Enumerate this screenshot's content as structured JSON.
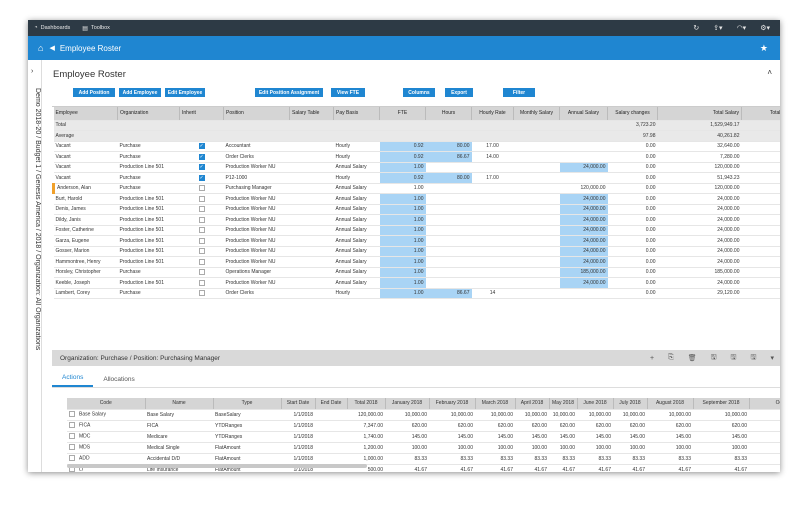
{
  "topbar": {
    "dashboards": "Dashboards",
    "toolbox": "Toolbox"
  },
  "titlebar": {
    "title": "Employee Roster"
  },
  "sidebar": {
    "breadcrumb": "Demo 2018-20 / Budget 1 / Genesis America / 2018 / Organization: All Organizations"
  },
  "page": {
    "heading": "Employee Roster"
  },
  "toolbar": {
    "add_position": "Add Position",
    "add_employee": "Add Employee",
    "edit_employee": "Edit Employee",
    "edit_position_assignment": "Edit Position Assignment",
    "view_fte": "View FTE",
    "columns": "Columns",
    "export": "Export",
    "filter": "Filter"
  },
  "grid": {
    "headers": [
      "Employee",
      "Organization",
      "Inherit",
      "Position",
      "Salary Table",
      "Pay Basis",
      "FTE",
      "Hours",
      "Hourly Rate",
      "Monthly Salary",
      "Annual Salary",
      "Salary changes",
      "Total Salary",
      "Total S"
    ],
    "total": {
      "label": "Total",
      "salary_changes": "3,723.20",
      "total_salary": "1,529,949.17"
    },
    "average": {
      "label": "Average",
      "salary_changes": "97.98",
      "total_salary": "40,261.82"
    },
    "rows": [
      {
        "employee": "Vacant",
        "org": "Purchase",
        "inherit": true,
        "position": "Accountant",
        "pay": "Hourly",
        "fte": "0.92",
        "hours": "80.00",
        "rate": "17.00",
        "monthly": "",
        "annual": "",
        "changes": "0.00",
        "total": "32,640.00"
      },
      {
        "employee": "Vacant",
        "org": "Purchase",
        "inherit": true,
        "position": "Order Clerks",
        "pay": "Hourly",
        "fte": "0.92",
        "hours": "86.67",
        "rate": "14.00",
        "monthly": "",
        "annual": "",
        "changes": "0.00",
        "total": "7,280.00"
      },
      {
        "employee": "Vacant",
        "org": "Production Line 501",
        "inherit": true,
        "position": "Production Worker NU",
        "pay": "Annual Salary",
        "fte": "1.00",
        "hours": "",
        "rate": "",
        "monthly": "",
        "annual": "24,000.00",
        "changes": "0.00",
        "total": "120,000.00"
      },
      {
        "employee": "Vacant",
        "org": "Purchase",
        "inherit": true,
        "position": "P12-1000",
        "pay": "Hourly",
        "fte": "0.92",
        "hours": "80.00",
        "rate": "17.00",
        "monthly": "",
        "annual": "",
        "changes": "0.00",
        "total": "51,943.23"
      },
      {
        "employee": "Anderson, Alan",
        "org": "Purchase",
        "inherit": false,
        "position": "Purchasing Manager",
        "pay": "Annual Salary",
        "fte": "1.00",
        "hours": "",
        "rate": "",
        "monthly": "",
        "annual": "120,000.00",
        "changes": "0.00",
        "total": "120,000.00",
        "selected": true
      },
      {
        "employee": "Burt, Harold",
        "org": "Production Line 501",
        "inherit": false,
        "position": "Production Worker NU",
        "pay": "Annual Salary",
        "fte": "1.00",
        "hours": "",
        "rate": "",
        "monthly": "",
        "annual": "24,000.00",
        "changes": "0.00",
        "total": "24,000.00"
      },
      {
        "employee": "Denis, James",
        "org": "Production Line 501",
        "inherit": false,
        "position": "Production Worker NU",
        "pay": "Annual Salary",
        "fte": "1.00",
        "hours": "",
        "rate": "",
        "monthly": "",
        "annual": "24,000.00",
        "changes": "0.00",
        "total": "24,000.00"
      },
      {
        "employee": "Dildy, Janis",
        "org": "Production Line 501",
        "inherit": false,
        "position": "Production Worker NU",
        "pay": "Annual Salary",
        "fte": "1.00",
        "hours": "",
        "rate": "",
        "monthly": "",
        "annual": "24,000.00",
        "changes": "0.00",
        "total": "24,000.00"
      },
      {
        "employee": "Foster, Catherine",
        "org": "Production Line 501",
        "inherit": false,
        "position": "Production Worker NU",
        "pay": "Annual Salary",
        "fte": "1.00",
        "hours": "",
        "rate": "",
        "monthly": "",
        "annual": "24,000.00",
        "changes": "0.00",
        "total": "24,000.00"
      },
      {
        "employee": "Garza, Eugene",
        "org": "Production Line 501",
        "inherit": false,
        "position": "Production Worker NU",
        "pay": "Annual Salary",
        "fte": "1.00",
        "hours": "",
        "rate": "",
        "monthly": "",
        "annual": "24,000.00",
        "changes": "0.00",
        "total": "24,000.00"
      },
      {
        "employee": "Gosser, Marion",
        "org": "Production Line 501",
        "inherit": false,
        "position": "Production Worker NU",
        "pay": "Annual Salary",
        "fte": "1.00",
        "hours": "",
        "rate": "",
        "monthly": "",
        "annual": "24,000.00",
        "changes": "0.00",
        "total": "24,000.00"
      },
      {
        "employee": "Hammontree, Henry",
        "org": "Production Line 501",
        "inherit": false,
        "position": "Production Worker NU",
        "pay": "Annual Salary",
        "fte": "1.00",
        "hours": "",
        "rate": "",
        "monthly": "",
        "annual": "24,000.00",
        "changes": "0.00",
        "total": "24,000.00"
      },
      {
        "employee": "Horsley, Christopher",
        "org": "Purchase",
        "inherit": false,
        "position": "Operations Manager",
        "pay": "Annual Salary",
        "fte": "1.00",
        "hours": "",
        "rate": "",
        "monthly": "",
        "annual": "185,000.00",
        "changes": "0.00",
        "total": "185,000.00"
      },
      {
        "employee": "Keeble, Joseph",
        "org": "Production Line 501",
        "inherit": false,
        "position": "Production Worker NU",
        "pay": "Annual Salary",
        "fte": "1.00",
        "hours": "",
        "rate": "",
        "monthly": "",
        "annual": "24,000.00",
        "changes": "0.00",
        "total": "24,000.00"
      },
      {
        "employee": "Lambert, Corey",
        "org": "Purchase",
        "inherit": false,
        "position": "Order Clerks",
        "pay": "Hourly",
        "fte": "1.00",
        "hours": "86.67",
        "rate": "14",
        "monthly": "",
        "annual": "",
        "changes": "0.00",
        "total": "29,120.00"
      }
    ]
  },
  "detail": {
    "label": "Organization: Purchase / Position: Purchasing Manager"
  },
  "tabs": {
    "actions": "Actions",
    "allocations": "Allocations"
  },
  "grid2": {
    "headers": [
      "Code",
      "Name",
      "Type",
      "Start Date",
      "End Date",
      "Total 2018",
      "January 2018",
      "February 2018",
      "March 2018",
      "April 2018",
      "May 2018",
      "June 2018",
      "July 2018",
      "August 2018",
      "September 2018",
      "October 20"
    ],
    "rows": [
      {
        "code": "Base Salary",
        "name": "Base Salary",
        "type": "BaseSalary",
        "start": "1/1/2018",
        "end": "",
        "total": "120,000.00",
        "m": [
          "10,000.00",
          "10,000.00",
          "10,000.00",
          "10,000.00",
          "10,000.00",
          "10,000.00",
          "10,000.00",
          "10,000.00",
          "10,000.00",
          "10,"
        ]
      },
      {
        "code": "FICA",
        "name": "FICA",
        "type": "YTDRanges",
        "start": "1/1/2018",
        "end": "",
        "total": "7,347.00",
        "m": [
          "620.00",
          "620.00",
          "620.00",
          "620.00",
          "620.00",
          "620.00",
          "620.00",
          "620.00",
          "620.00",
          "6"
        ]
      },
      {
        "code": "MDC",
        "name": "Medicare",
        "type": "YTDRanges",
        "start": "1/1/2018",
        "end": "",
        "total": "1,740.00",
        "m": [
          "145.00",
          "145.00",
          "145.00",
          "145.00",
          "145.00",
          "145.00",
          "145.00",
          "145.00",
          "145.00",
          "14"
        ]
      },
      {
        "code": "MDS",
        "name": "Medical Single",
        "type": "FlatAmount",
        "start": "1/1/2018",
        "end": "",
        "total": "1,200.00",
        "m": [
          "100.00",
          "100.00",
          "100.00",
          "100.00",
          "100.00",
          "100.00",
          "100.00",
          "100.00",
          "100.00",
          "10"
        ]
      },
      {
        "code": "ADD",
        "name": "Accidental D/D",
        "type": "FlatAmount",
        "start": "1/1/2018",
        "end": "",
        "total": "1,000.00",
        "m": [
          "83.33",
          "83.33",
          "83.33",
          "83.33",
          "83.33",
          "83.33",
          "83.33",
          "83.33",
          "83.33",
          "8"
        ]
      },
      {
        "code": "LI",
        "name": "Life Insurance",
        "type": "FlatAmount",
        "start": "1/1/2018",
        "end": "",
        "total": "500.00",
        "m": [
          "41.67",
          "41.67",
          "41.67",
          "41.67",
          "41.67",
          "41.67",
          "41.67",
          "41.67",
          "41.67",
          "4"
        ]
      }
    ]
  }
}
